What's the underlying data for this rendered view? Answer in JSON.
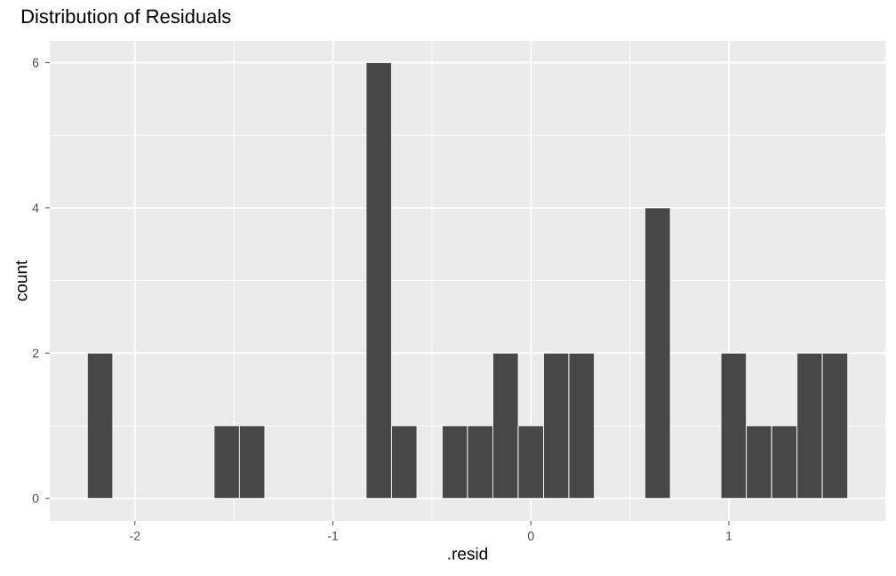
{
  "chart_data": {
    "type": "histogram",
    "title": "Distribution of Residuals",
    "xlabel": ".resid",
    "ylabel": "count",
    "bins": [
      -2.24,
      -2.112,
      -1.984,
      -1.856,
      -1.728,
      -1.6,
      -1.472,
      -1.344,
      -1.216,
      -1.088,
      -0.96,
      -0.832,
      -0.704,
      -0.576,
      -0.448,
      -0.32,
      -0.192,
      -0.064,
      0.064,
      0.192,
      0.32,
      0.448,
      0.576,
      0.704,
      0.832,
      0.96,
      1.088,
      1.216,
      1.344,
      1.472,
      1.6
    ],
    "values": [
      2,
      0,
      0,
      0,
      0,
      1,
      1,
      0,
      0,
      0,
      0,
      6,
      1,
      0,
      1,
      1,
      2,
      1,
      2,
      2,
      0,
      0,
      4,
      0,
      0,
      2,
      1,
      1,
      2,
      2
    ],
    "color": "#474747",
    "xlim": [
      -2.43,
      1.79
    ],
    "ylim": [
      -0.31,
      6.3
    ],
    "xticks": [
      -2,
      -1,
      0,
      1
    ],
    "yticks": [
      0,
      2,
      4,
      6
    ],
    "grid": true
  }
}
